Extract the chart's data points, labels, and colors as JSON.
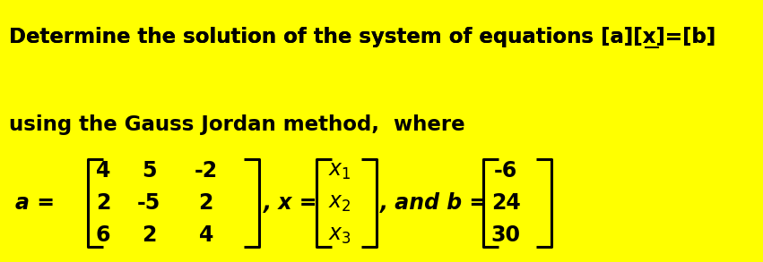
{
  "bg_color_bright": "#FFFF00",
  "bg_color_light": "#FFFFE0",
  "text_color": "#000000",
  "title_line1": "Determine the solution of the system of equations [a][x]=[b]",
  "title_line2": "using the Gauss Jordan method,  where",
  "title_fontsize": 16.5,
  "matrix_fontsize": 17,
  "matrix_a": [
    [
      4,
      5,
      -2
    ],
    [
      2,
      -5,
      2
    ],
    [
      6,
      2,
      4
    ]
  ],
  "matrix_b": [
    [
      -6
    ],
    [
      24
    ],
    [
      30
    ]
  ],
  "fig_width": 8.51,
  "fig_height": 2.93,
  "dpi": 100
}
